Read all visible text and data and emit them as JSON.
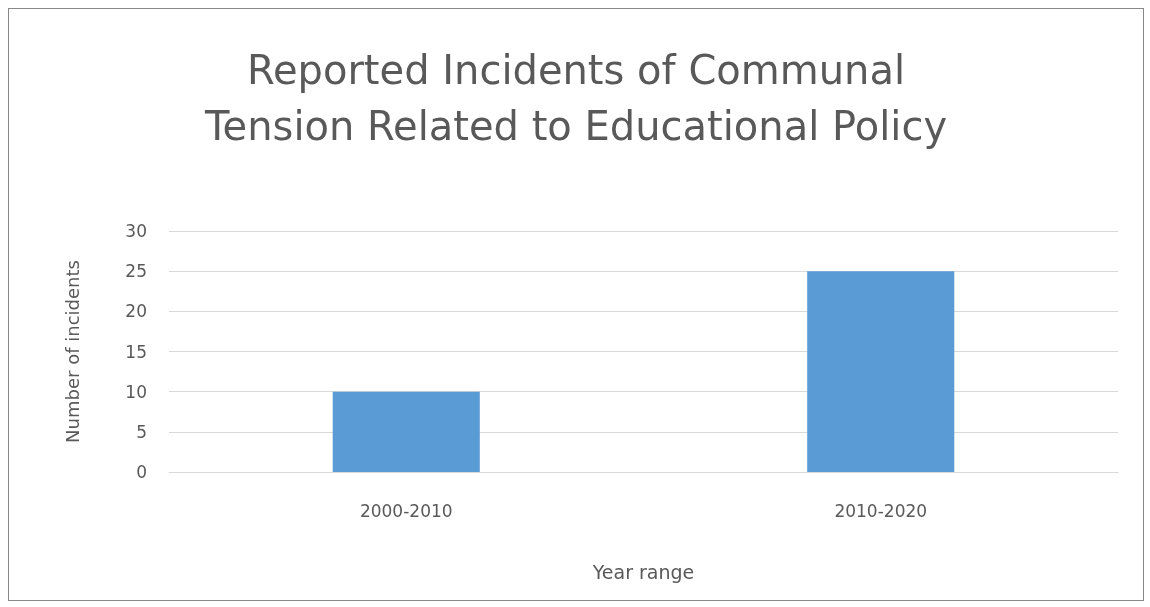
{
  "chart_data": {
    "type": "bar",
    "title": "Reported Incidents of Communal\nTension Related to Educational Policy",
    "xlabel": "Year range",
    "ylabel": "Number of incidents",
    "categories": [
      "2000-2010",
      "2010-2020"
    ],
    "series": [
      {
        "color": "#5b9bd5",
        "values": [
          10,
          25
        ]
      }
    ],
    "ylim": [
      0,
      30
    ],
    "yticks": [
      0,
      5,
      10,
      15,
      20,
      25,
      30
    ],
    "grid": "y"
  }
}
